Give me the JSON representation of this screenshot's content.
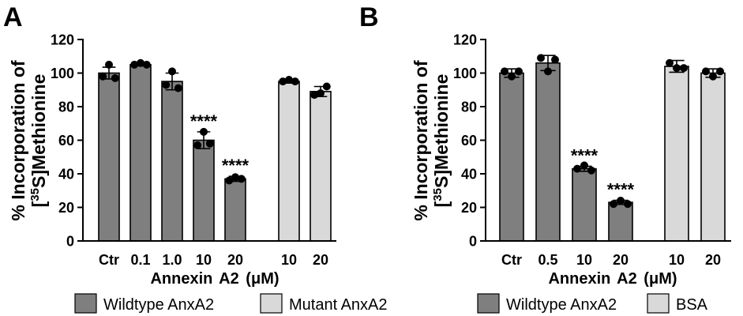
{
  "chart_data": [
    {
      "panel_label": "A",
      "type": "bar",
      "ylabel": {
        "line1": "% Incorporation of",
        "line2_open": "[",
        "line2_sup": "35",
        "line2_rest": "S]Methionine"
      },
      "xlabel": "Annexin A2 (μM)",
      "ylim": [
        0,
        120
      ],
      "yticks": [
        0,
        20,
        40,
        60,
        80,
        100,
        120
      ],
      "series": [
        {
          "name": "Wildtype AnxA2",
          "color": "#7f7f7f",
          "bars": [
            {
              "category": "Ctr",
              "value": 100,
              "sd": 3.5,
              "points": [
                98,
                105,
                97
              ]
            },
            {
              "category": "0.1",
              "value": 105,
              "sd": 0.7,
              "points": [
                105,
                106,
                105
              ]
            },
            {
              "category": "1.0",
              "value": 95,
              "sd": 5,
              "points": [
                93,
                101,
                91
              ]
            },
            {
              "category": "10",
              "value": 60,
              "sd": 5,
              "points": [
                57,
                65,
                58
              ],
              "significance": "****"
            },
            {
              "category": "20",
              "value": 37,
              "sd": 1.5,
              "points": [
                36,
                38,
                37
              ],
              "significance": "****"
            }
          ]
        },
        {
          "name": "Mutant AnxA2",
          "color": "#d9d9d9",
          "bars": [
            {
              "category": "10",
              "value": 95,
              "sd": 1,
              "points": [
                95,
                96,
                95
              ]
            },
            {
              "category": "20",
              "value": 89,
              "sd": 3,
              "points": [
                87,
                88,
                92
              ]
            }
          ]
        }
      ]
    },
    {
      "panel_label": "B",
      "type": "bar",
      "ylabel": {
        "line1": "% Incorporation of",
        "line2_open": "[",
        "line2_sup": "35",
        "line2_rest": "S]Methionine"
      },
      "xlabel": "Annexin A2 (μM)",
      "ylim": [
        0,
        120
      ],
      "yticks": [
        0,
        20,
        40,
        60,
        80,
        100,
        120
      ],
      "series": [
        {
          "name": "Wildtype AnxA2",
          "color": "#7f7f7f",
          "bars": [
            {
              "category": "Ctr",
              "value": 100,
              "sd": 2.5,
              "points": [
                101,
                98,
                101
              ]
            },
            {
              "category": "0.5",
              "value": 106,
              "sd": 4.5,
              "points": [
                109,
                101,
                108
              ]
            },
            {
              "category": "10",
              "value": 43,
              "sd": 1.5,
              "points": [
                43,
                45,
                42
              ],
              "significance": "****"
            },
            {
              "category": "20",
              "value": 23,
              "sd": 1.2,
              "points": [
                22,
                24,
                22
              ],
              "significance": "****"
            }
          ]
        },
        {
          "name": "BSA",
          "color": "#d9d9d9",
          "bars": [
            {
              "category": "10",
              "value": 104,
              "sd": 3.5,
              "points": [
                106,
                103,
                103
              ]
            },
            {
              "category": "20",
              "value": 100,
              "sd": 2.5,
              "points": [
                101,
                98,
                101
              ]
            }
          ]
        }
      ]
    }
  ]
}
